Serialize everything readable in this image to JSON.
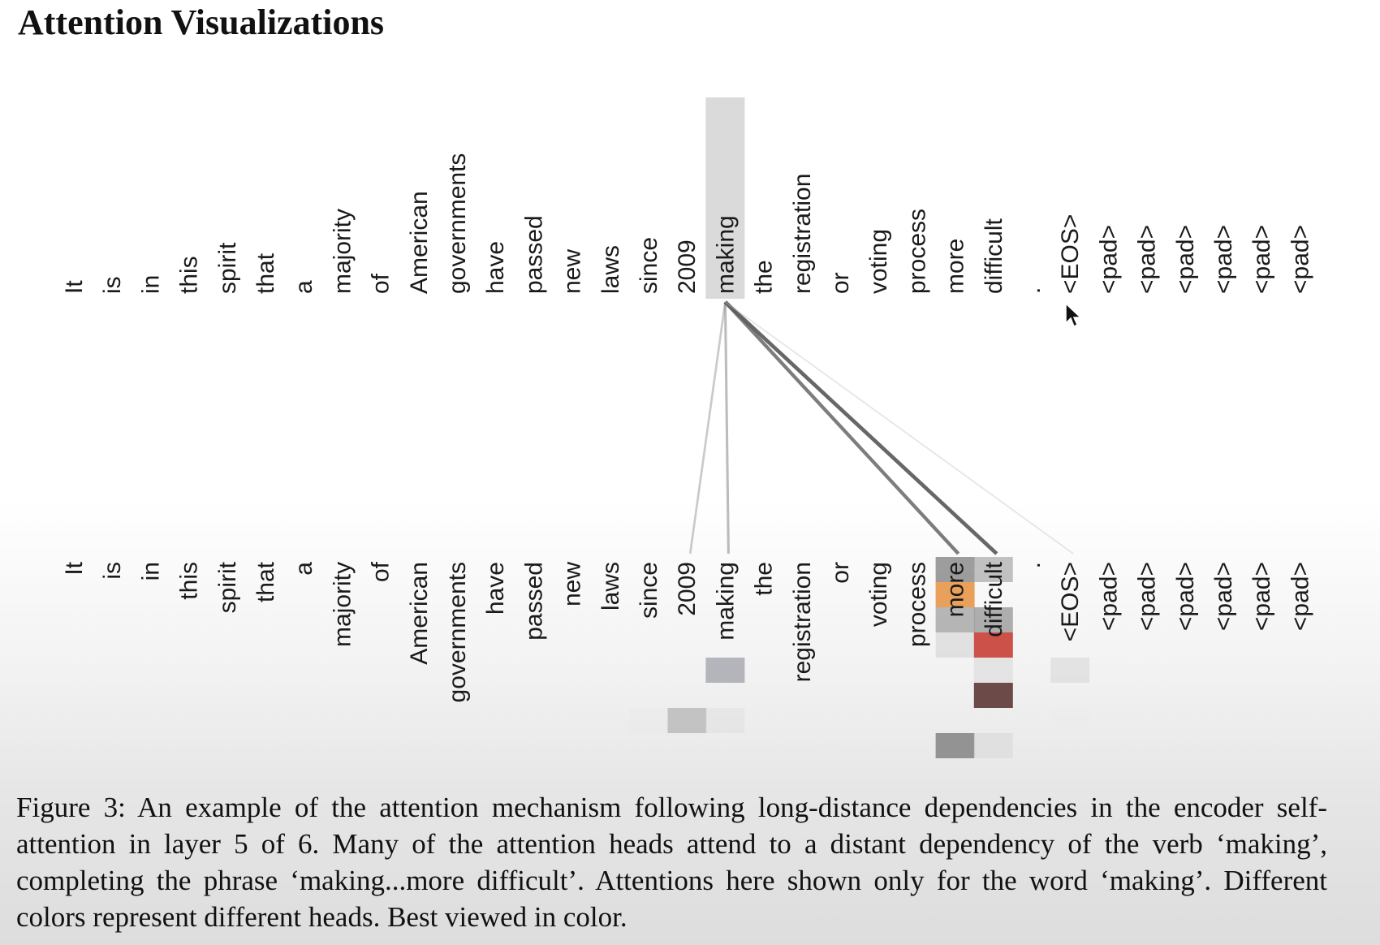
{
  "title": "Attention Visualizations",
  "tokens": [
    "It",
    "is",
    "in",
    "this",
    "spirit",
    "that",
    "a",
    "majority",
    "of",
    "American",
    "governments",
    "have",
    "passed",
    "new",
    "laws",
    "since",
    "2009",
    "making",
    "the",
    "registration",
    "or",
    "voting",
    "process",
    "more",
    "difficult",
    ".",
    "<EOS>",
    "<pad>",
    "<pad>",
    "<pad>",
    "<pad>",
    "<pad>",
    "<pad>"
  ],
  "query_token_index": 17,
  "attention_lines": [
    {
      "target": 16,
      "strength": 0.35
    },
    {
      "target": 17,
      "strength": 0.45
    },
    {
      "target": 23,
      "strength": 0.8
    },
    {
      "target": 24,
      "strength": 0.9
    },
    {
      "target": 26,
      "strength": 0.1
    }
  ],
  "attention_cells": [
    {
      "token": 23,
      "row": 0,
      "color": "#8c8c8c",
      "alpha": 0.85
    },
    {
      "token": 23,
      "row": 1,
      "color": "#e9a05a",
      "alpha": 1.0
    },
    {
      "token": 23,
      "row": 2,
      "color": "#9a9a9a",
      "alpha": 0.7
    },
    {
      "token": 23,
      "row": 3,
      "color": "#bdbdbd",
      "alpha": 0.35
    },
    {
      "token": 24,
      "row": 0,
      "color": "#a8a8a8",
      "alpha": 0.7
    },
    {
      "token": 24,
      "row": 2,
      "color": "#8f8f8f",
      "alpha": 0.7
    },
    {
      "token": 24,
      "row": 3,
      "color": "#cc5148",
      "alpha": 1.0
    },
    {
      "token": 24,
      "row": 4,
      "color": "#d6d6d6",
      "alpha": 0.5
    },
    {
      "token": 24,
      "row": 5,
      "color": "#6b4a48",
      "alpha": 1.0
    },
    {
      "token": 17,
      "row": 4,
      "color": "#a9a9b2",
      "alpha": 0.85
    },
    {
      "token": 26,
      "row": 4,
      "color": "#d9d9d9",
      "alpha": 0.6
    },
    {
      "token": 16,
      "row": 6,
      "color": "#b8b8b8",
      "alpha": 0.8
    },
    {
      "token": 17,
      "row": 6,
      "color": "#dddddd",
      "alpha": 0.4
    },
    {
      "token": 15,
      "row": 6,
      "color": "#e8e8e8",
      "alpha": 0.4
    },
    {
      "token": 23,
      "row": 7,
      "color": "#8a8a8a",
      "alpha": 0.9
    },
    {
      "token": 24,
      "row": 7,
      "color": "#d8d8d8",
      "alpha": 0.6
    },
    {
      "token": 26,
      "row": 6,
      "color": "#ebebeb",
      "alpha": 0.5
    }
  ],
  "caption": "Figure 3: An example of the attention mechanism following long-distance dependencies in the encoder self-attention in layer 5 of 6. Many of the attention heads attend to a distant dependency of the verb ‘making’, completing the phrase ‘making...more difficult’. Attentions here shown only for the word ‘making’. Different colors represent different heads. Best viewed in color."
}
